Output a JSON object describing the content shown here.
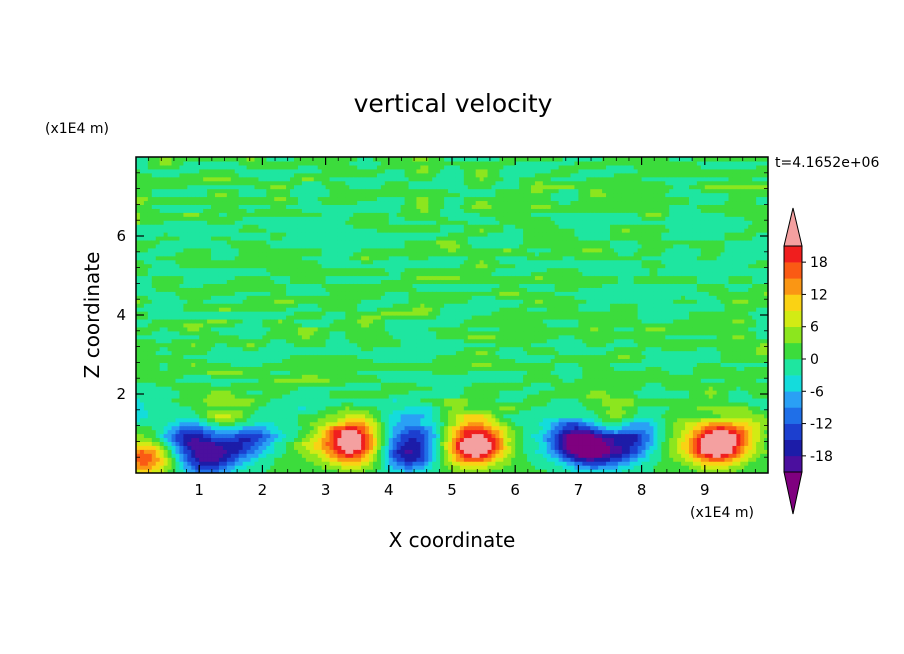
{
  "chart_data": {
    "type": "heatmap",
    "title": "vertical velocity",
    "xlabel": "X coordinate",
    "ylabel": "Z coordinate",
    "x_unit": "(x1E4 m)",
    "y_unit": "(x1E4 m)",
    "timestamp": "t=4.1652e+06",
    "xlim": [
      0,
      10
    ],
    "ylim": [
      0,
      8
    ],
    "x_ticks": [
      "1",
      "2",
      "3",
      "4",
      "5",
      "6",
      "7",
      "8",
      "9"
    ],
    "y_ticks": [
      "2",
      "4",
      "6"
    ],
    "background_value": 0.5,
    "features": [
      {
        "x": 0.15,
        "z": 0.4,
        "w": 17
      },
      {
        "x": 0.12,
        "z": 1.5,
        "w": -2
      },
      {
        "x": 0.75,
        "z": 0.9,
        "w": -9
      },
      {
        "x": 1.1,
        "z": 0.35,
        "w": -16
      },
      {
        "x": 1.0,
        "z": 1.0,
        "w": -8
      },
      {
        "x": 1.38,
        "z": 1.35,
        "w": 8
      },
      {
        "x": 1.8,
        "z": 0.95,
        "w": -11
      },
      {
        "x": 1.5,
        "z": 0.6,
        "w": -8
      },
      {
        "x": 2.35,
        "z": 1.3,
        "w": -4
      },
      {
        "x": 2.8,
        "z": 0.8,
        "w": 4
      },
      {
        "x": 3.3,
        "z": 0.9,
        "w": 12
      },
      {
        "x": 3.45,
        "z": 0.6,
        "w": 15
      },
      {
        "x": 3.55,
        "z": 1.25,
        "w": 6
      },
      {
        "x": 4.3,
        "z": 0.5,
        "w": -18
      },
      {
        "x": 4.5,
        "z": 1.1,
        "w": -8
      },
      {
        "x": 4.0,
        "z": 1.3,
        "w": -4
      },
      {
        "x": 5.3,
        "z": 0.6,
        "w": 18
      },
      {
        "x": 5.55,
        "z": 0.85,
        "w": 12
      },
      {
        "x": 5.25,
        "z": 1.25,
        "w": 7
      },
      {
        "x": 6.15,
        "z": 1.0,
        "w": -3
      },
      {
        "x": 6.85,
        "z": 0.9,
        "w": -9
      },
      {
        "x": 7.2,
        "z": 0.55,
        "w": -17
      },
      {
        "x": 7.0,
        "z": 0.9,
        "w": -12
      },
      {
        "x": 7.5,
        "z": 1.4,
        "w": 6
      },
      {
        "x": 7.9,
        "z": 1.0,
        "w": -12
      },
      {
        "x": 7.7,
        "z": 0.6,
        "w": -9
      },
      {
        "x": 8.45,
        "z": 0.9,
        "w": 3
      },
      {
        "x": 9.0,
        "z": 0.8,
        "w": 10
      },
      {
        "x": 9.35,
        "z": 0.9,
        "w": 14
      },
      {
        "x": 9.2,
        "z": 0.55,
        "w": 12
      },
      {
        "x": 9.7,
        "z": 1.2,
        "w": 5
      }
    ],
    "colorbar": {
      "ticks": [
        "18",
        "12",
        "6",
        "0",
        "-6",
        "-12",
        "-18"
      ],
      "levels": [
        -21,
        -18,
        -15,
        -12,
        -9,
        -6,
        -3,
        0,
        3,
        6,
        9,
        12,
        15,
        18,
        21
      ],
      "colors": [
        "#7f007f",
        "#4b0f9e",
        "#1c1ca8",
        "#1c3fcf",
        "#1f6fe8",
        "#2aa0f5",
        "#14dcdc",
        "#1ee6a0",
        "#3cdc3c",
        "#8ce61e",
        "#d2eb14",
        "#fad214",
        "#fa9614",
        "#fa5a14",
        "#f01e1e",
        "#f4a0a0"
      ]
    }
  }
}
